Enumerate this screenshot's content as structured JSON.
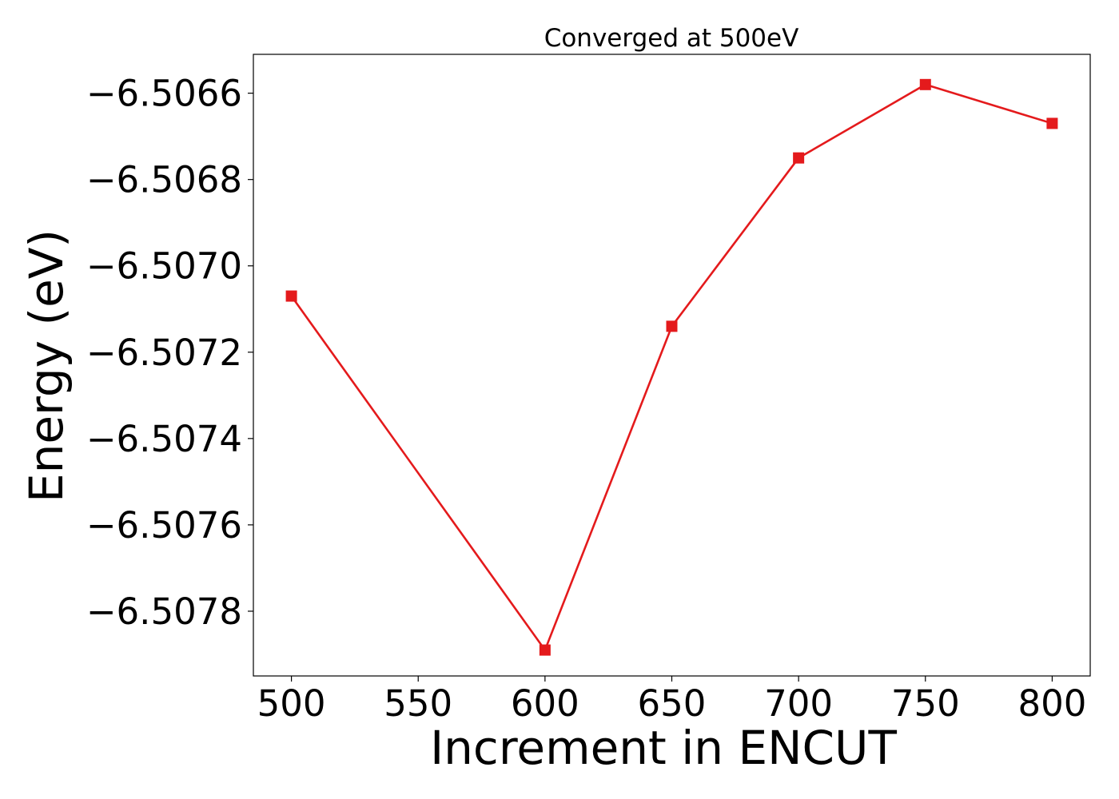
{
  "chart_data": {
    "type": "line",
    "title": "Converged at 500eV",
    "xlabel": "Increment in ENCUT",
    "ylabel": "Energy (eV)",
    "x": [
      500,
      600,
      650,
      700,
      750,
      800
    ],
    "series": [
      {
        "values": [
          -6.50707,
          -6.50789,
          -6.50714,
          -6.50675,
          -6.50658,
          -6.50667
        ],
        "color": "#e41a1c",
        "marker": "square"
      }
    ],
    "xticks": [
      500,
      550,
      600,
      650,
      700,
      750,
      800
    ],
    "xtick_labels": [
      "500",
      "550",
      "600",
      "650",
      "700",
      "750",
      "800"
    ],
    "yticks": [
      -6.5078,
      -6.5076,
      -6.5074,
      -6.5072,
      -6.507,
      -6.5068,
      -6.5066
    ],
    "ytick_labels": [
      "−6.5078",
      "−6.5076",
      "−6.5074",
      "−6.5072",
      "−6.5070",
      "−6.5068",
      "−6.5066"
    ],
    "xlim": [
      485,
      815
    ],
    "ylim": [
      -6.50795,
      -6.50651
    ],
    "grid": false,
    "legend": false
  }
}
